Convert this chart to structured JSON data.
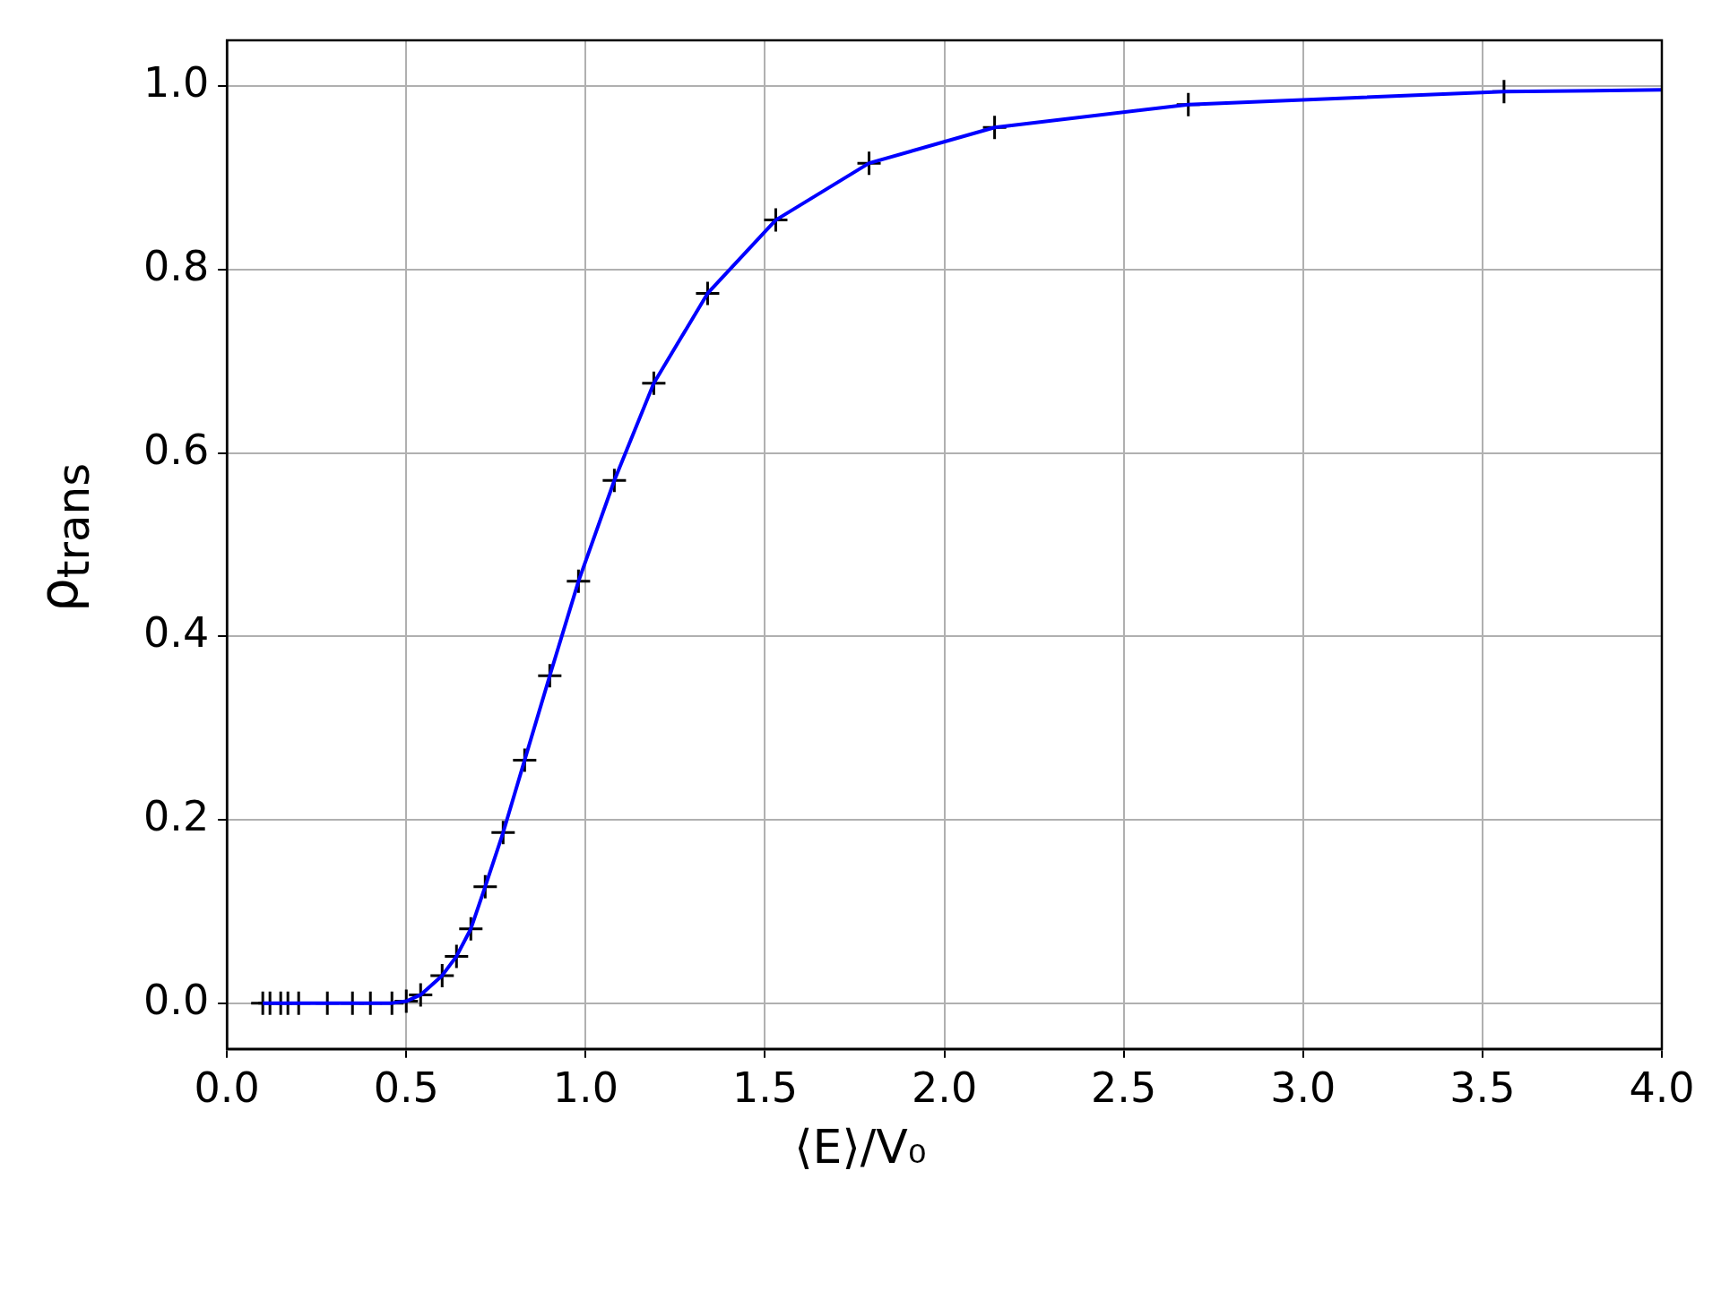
{
  "chart_data": {
    "type": "line",
    "xlabel": "⟨E⟩/V₀",
    "ylabel": "ρ$_{trans}$",
    "xlim": [
      0,
      4
    ],
    "ylim": [
      -0.05,
      1.05
    ],
    "xticks": [
      {
        "value": 0,
        "label": "0.0"
      },
      {
        "value": 0.5,
        "label": "0.5"
      },
      {
        "value": 1,
        "label": "1.0"
      },
      {
        "value": 1.5,
        "label": "1.5"
      },
      {
        "value": 2,
        "label": "2.0"
      },
      {
        "value": 2.5,
        "label": "2.5"
      },
      {
        "value": 3,
        "label": "3.0"
      },
      {
        "value": 3.5,
        "label": "3.5"
      },
      {
        "value": 4,
        "label": "4.0"
      }
    ],
    "yticks": [
      {
        "value": 0,
        "label": "0.0"
      },
      {
        "value": 0.2,
        "label": "0.2"
      },
      {
        "value": 0.4,
        "label": "0.4"
      },
      {
        "value": 0.6,
        "label": "0.6"
      },
      {
        "value": 0.8,
        "label": "0.8"
      },
      {
        "value": 1,
        "label": "1.0"
      }
    ],
    "grid": true,
    "legend": false,
    "series": [
      {
        "type": "line",
        "color": "#0000ff",
        "marker": "none",
        "line_style": "solid",
        "x": [
          0.1,
          0.12,
          0.15,
          0.17,
          0.2,
          0.28,
          0.35,
          0.4,
          0.46,
          0.5,
          0.54,
          0.6,
          0.64,
          0.68,
          0.72,
          0.77,
          0.83,
          0.9,
          0.98,
          1.08,
          1.19,
          1.34,
          1.53,
          1.79,
          2.14,
          2.68,
          3.56,
          4.0
        ],
        "values": [
          0,
          0,
          0,
          0,
          0,
          0,
          0,
          0,
          0,
          0.002,
          0.009,
          0.03,
          0.051,
          0.081,
          0.127,
          0.186,
          0.265,
          0.357,
          0.46,
          0.57,
          0.676,
          0.774,
          0.854,
          0.916,
          0.955,
          0.98,
          0.994,
          0.996
        ]
      },
      {
        "type": "scatter",
        "color": "#000000",
        "marker": "cross",
        "x": [
          0.1,
          0.12,
          0.15,
          0.17,
          0.2,
          0.28,
          0.35,
          0.4,
          0.46,
          0.5,
          0.54,
          0.6,
          0.64,
          0.68,
          0.72,
          0.77,
          0.83,
          0.9,
          0.98,
          1.08,
          1.19,
          1.34,
          1.53,
          1.79,
          2.14,
          2.68,
          3.56
        ],
        "values": [
          0,
          0,
          0,
          0,
          0,
          0,
          0,
          0,
          0,
          0.002,
          0.009,
          0.03,
          0.051,
          0.081,
          0.127,
          0.186,
          0.265,
          0.357,
          0.46,
          0.57,
          0.676,
          0.774,
          0.854,
          0.916,
          0.955,
          0.98,
          0.994
        ]
      }
    ]
  }
}
